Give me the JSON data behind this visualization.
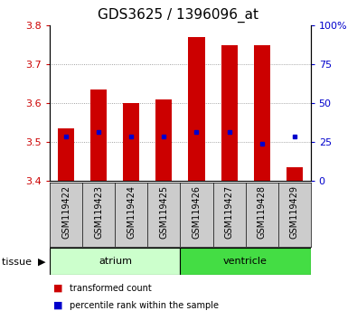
{
  "title": "GDS3625 / 1396096_at",
  "samples": [
    "GSM119422",
    "GSM119423",
    "GSM119424",
    "GSM119425",
    "GSM119426",
    "GSM119427",
    "GSM119428",
    "GSM119429"
  ],
  "transformed_count": [
    3.535,
    3.635,
    3.6,
    3.61,
    3.77,
    3.75,
    3.75,
    3.435
  ],
  "percentile_rank": [
    3.515,
    3.525,
    3.515,
    3.515,
    3.525,
    3.525,
    3.495,
    3.515
  ],
  "bar_bottom": 3.4,
  "ylim": [
    3.4,
    3.8
  ],
  "yticks_left": [
    3.4,
    3.5,
    3.6,
    3.7,
    3.8
  ],
  "yticks_right": [
    0,
    25,
    50,
    75,
    100
  ],
  "bar_color": "#cc0000",
  "percentile_color": "#0000cc",
  "tissue_groups": [
    {
      "label": "atrium",
      "samples": [
        0,
        1,
        2,
        3
      ],
      "color": "#ccffcc"
    },
    {
      "label": "ventricle",
      "samples": [
        4,
        5,
        6,
        7
      ],
      "color": "#44dd44"
    }
  ],
  "tissue_label": "tissue",
  "legend_items": [
    {
      "label": "transformed count",
      "color": "#cc0000"
    },
    {
      "label": "percentile rank within the sample",
      "color": "#0000cc"
    }
  ],
  "left_label_color": "#cc0000",
  "right_label_color": "#0000cc",
  "grid_color": "#888888",
  "bar_width": 0.5,
  "title_fontsize": 11,
  "tick_fontsize": 8,
  "sample_fontsize": 7,
  "label_fontsize": 8,
  "sample_box_color": "#cccccc",
  "bg_color": "#ffffff"
}
